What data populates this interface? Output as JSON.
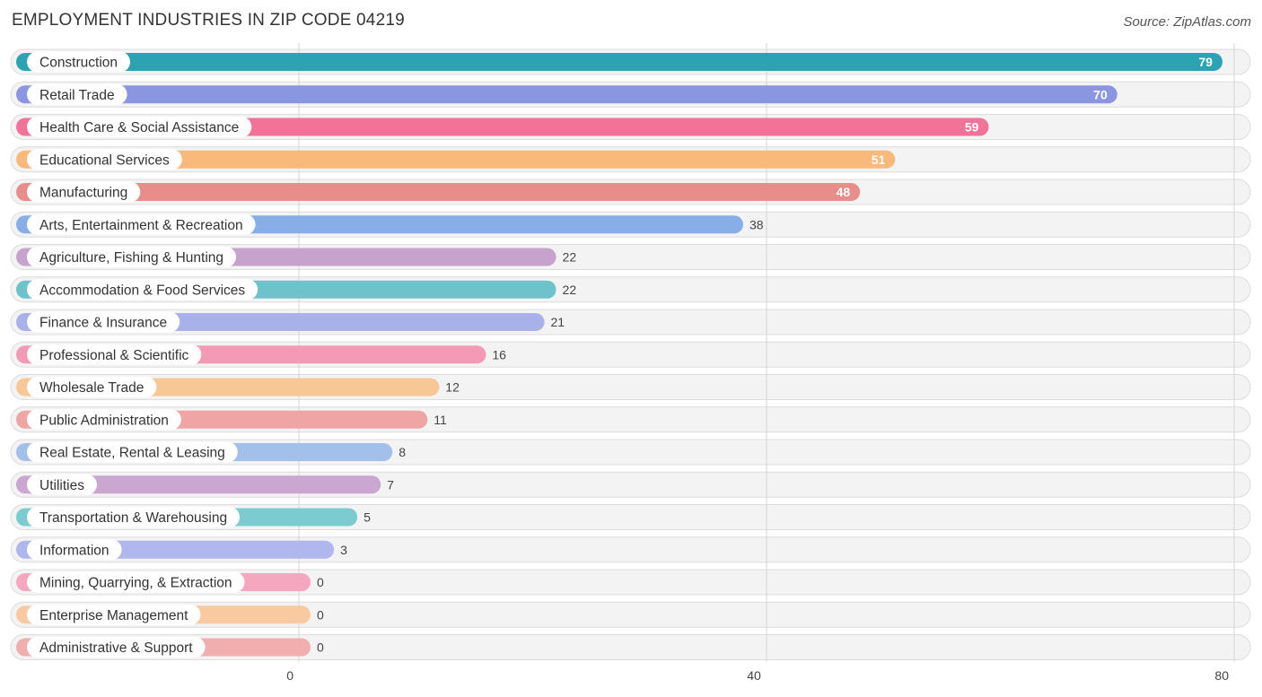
{
  "header": {
    "title": "EMPLOYMENT INDUSTRIES IN ZIP CODE 04219",
    "source": "Source: ZipAtlas.com"
  },
  "chart_data": {
    "type": "bar",
    "orientation": "horizontal",
    "title": "EMPLOYMENT INDUSTRIES IN ZIP CODE 04219",
    "xlabel": "",
    "ylabel": "",
    "xlim": [
      0,
      80
    ],
    "ticks": [
      0,
      40,
      80
    ],
    "grid": true,
    "categories": [
      "Construction",
      "Retail Trade",
      "Health Care & Social Assistance",
      "Educational Services",
      "Manufacturing",
      "Arts, Entertainment & Recreation",
      "Agriculture, Fishing & Hunting",
      "Accommodation & Food Services",
      "Finance & Insurance",
      "Professional & Scientific",
      "Wholesale Trade",
      "Public Administration",
      "Real Estate, Rental & Leasing",
      "Utilities",
      "Transportation & Warehousing",
      "Information",
      "Mining, Quarrying, & Extraction",
      "Enterprise Management",
      "Administrative & Support"
    ],
    "values": [
      79,
      70,
      59,
      51,
      48,
      38,
      22,
      22,
      21,
      16,
      12,
      11,
      8,
      7,
      5,
      3,
      0,
      0,
      0
    ],
    "colors": [
      "#2ba3b3",
      "#8a97e0",
      "#f27298",
      "#f8b97a",
      "#e88e8a",
      "#87aee6",
      "#c7a2cc",
      "#6ec3cb",
      "#a8b1ea",
      "#f59ab6",
      "#f8c796",
      "#efa5a4",
      "#a2c0ea",
      "#c9a7d0",
      "#7accd1",
      "#b0b6ee",
      "#f6a7c0",
      "#f9c9a1",
      "#f0aeae"
    ]
  }
}
